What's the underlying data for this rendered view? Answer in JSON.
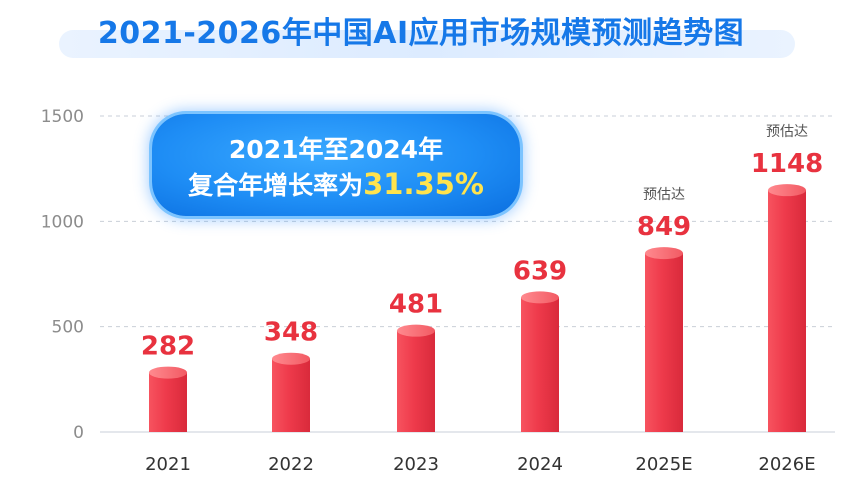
{
  "page": {
    "title": "2021-2026年中国AI应用市场规模预测趋势图"
  },
  "cagr_callout": {
    "line1": "2021年至2024年",
    "line2_prefix": "复合年增长率为",
    "value": "31.35%"
  },
  "colors": {
    "title": "#1678e8",
    "bar": "#ee3a4b",
    "value_label": "#e8323f",
    "callout_bg": "#1e8df5",
    "callout_highlight": "#ffe34d"
  },
  "chart_data": {
    "type": "bar",
    "title": "2021-2026年中国AI应用市场规模预测趋势图",
    "categories": [
      "2021",
      "2022",
      "2023",
      "2024",
      "2025E",
      "2026E"
    ],
    "values": [
      282,
      348,
      481,
      639,
      849,
      1148
    ],
    "data_labels": [
      "282",
      "348",
      "481",
      "639",
      "849",
      "1148"
    ],
    "annotations": [
      "",
      "",
      "",
      "",
      "预估达",
      "预估达"
    ],
    "y_ticks": [
      0,
      500,
      1000,
      1500
    ],
    "ylim": [
      0,
      1500
    ],
    "xlabel": "",
    "ylabel": "",
    "grid": true,
    "legend": "none"
  }
}
